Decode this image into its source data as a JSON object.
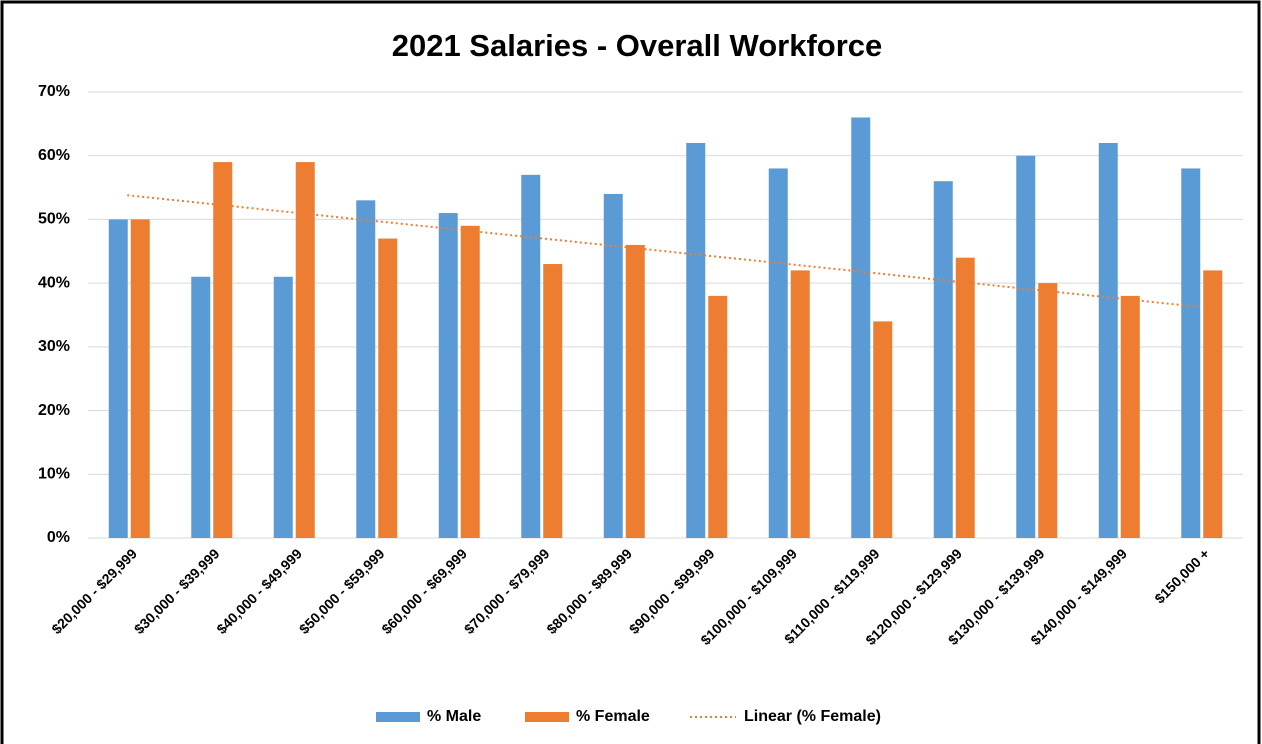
{
  "chart_data": {
    "type": "bar",
    "title": "2021 Salaries - Overall Workforce",
    "categories": [
      "$20,000 - $29,999",
      "$30,000 - $39,999",
      "$40,000 - $49,999",
      "$50,000 - $59,999",
      "$60,000 - $69,999",
      "$70,000 - $79,999",
      "$80,000 - $89,999",
      "$90,000 - $99,999",
      "$100,000 - $109,999",
      "$110,000 - $119,999",
      "$120,000 - $129,999",
      "$130,000 - $139,999",
      "$140,000 - $149,999",
      "$150,000 +"
    ],
    "series": [
      {
        "name": "% Male",
        "color": "#5b9bd5",
        "values": [
          50,
          41,
          41,
          53,
          51,
          57,
          54,
          62,
          58,
          66,
          56,
          60,
          62,
          58
        ]
      },
      {
        "name": "% Female",
        "color": "#ed7d31",
        "values": [
          50,
          59,
          59,
          47,
          49,
          43,
          46,
          38,
          42,
          34,
          44,
          40,
          38,
          42
        ]
      }
    ],
    "trendline": {
      "name": "Linear (% Female)",
      "color": "#ed7d31",
      "values": [
        53.8,
        36.3
      ]
    },
    "ylim": [
      0,
      70
    ],
    "yticks": [
      {
        "value": 0,
        "label": "0%"
      },
      {
        "value": 10,
        "label": "10%"
      },
      {
        "value": 20,
        "label": "20%"
      },
      {
        "value": 30,
        "label": "30%"
      },
      {
        "value": 40,
        "label": "40%"
      },
      {
        "value": 50,
        "label": "50%"
      },
      {
        "value": 60,
        "label": "60%"
      },
      {
        "value": 70,
        "label": "70%"
      }
    ],
    "grid": true,
    "legend": "bottom"
  }
}
